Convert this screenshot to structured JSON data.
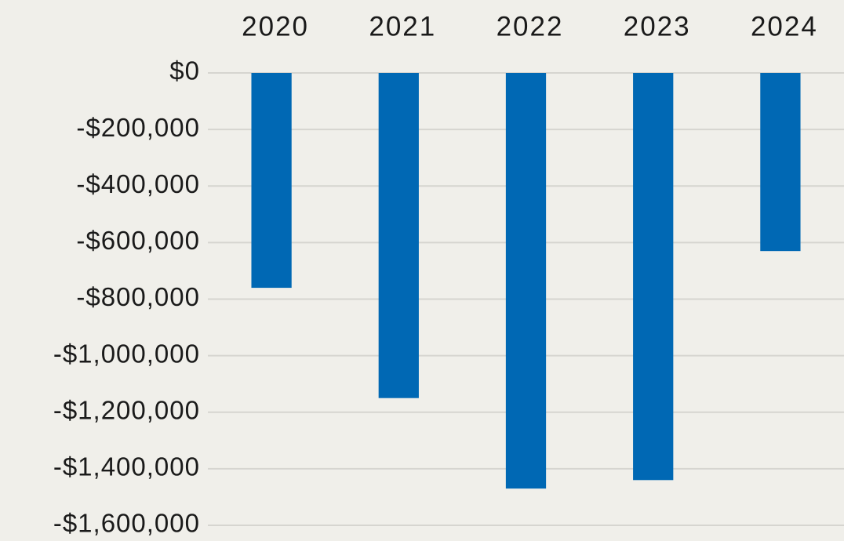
{
  "chart_data": {
    "type": "bar",
    "categories": [
      "2020",
      "2021",
      "2022",
      "2023",
      "2024"
    ],
    "values": [
      -760000,
      -1150000,
      -1470000,
      -1440000,
      -630000
    ],
    "color": "#0068b4",
    "ylim": [
      -1600000,
      0
    ],
    "yticks": [
      {
        "value": 0,
        "label": "$0"
      },
      {
        "value": -200000,
        "label": "-$200,000"
      },
      {
        "value": -400000,
        "label": "-$400,000"
      },
      {
        "value": -600000,
        "label": "-$600,000"
      },
      {
        "value": -800000,
        "label": "-$800,000"
      },
      {
        "value": -1000000,
        "label": "-$1,000,000"
      },
      {
        "value": -1200000,
        "label": "-$1,200,000"
      },
      {
        "value": -1400000,
        "label": "-$1,400,000"
      },
      {
        "value": -1600000,
        "label": "-$1,600,000"
      }
    ],
    "grid": true
  }
}
